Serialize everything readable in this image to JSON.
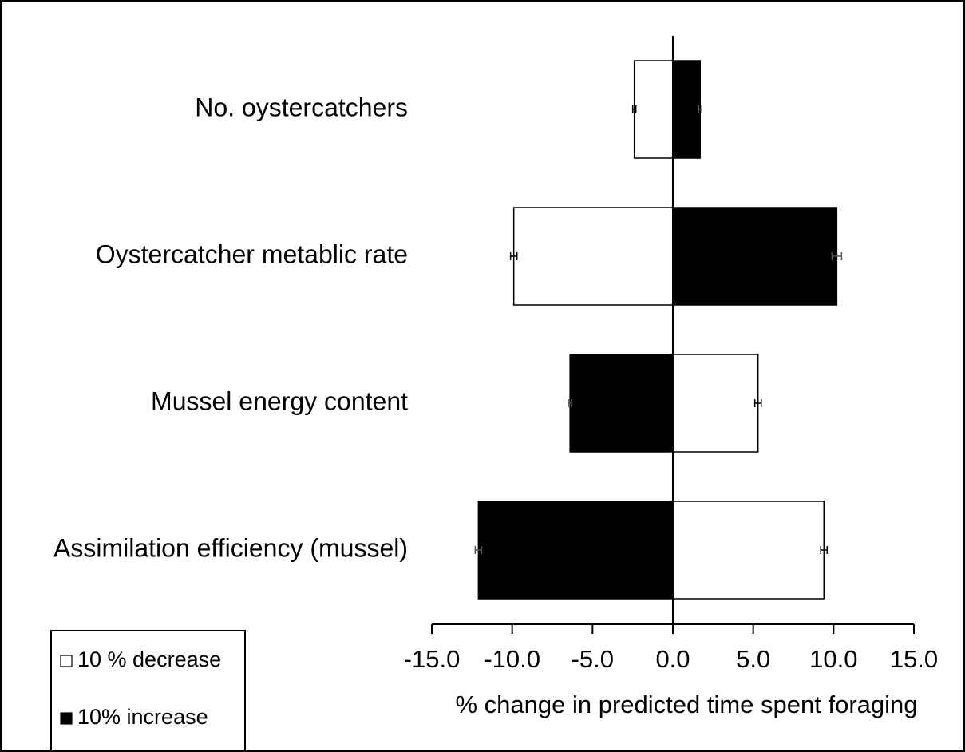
{
  "chart_data": {
    "type": "hbar",
    "categories": [
      "No. oystercatchers",
      "Oystercatcher metablic rate",
      "Mussel energy content",
      "Assimilation efficiency (mussel)"
    ],
    "series": [
      {
        "name": "10 % decrease",
        "color": "#ffffff",
        "values": [
          -2.4,
          -9.9,
          5.3,
          9.4
        ],
        "errors": [
          0.1,
          0.2,
          0.2,
          0.2
        ]
      },
      {
        "name": "10% increase",
        "color": "#000000",
        "values": [
          1.7,
          10.2,
          -6.4,
          -12.1
        ],
        "errors": [
          0.1,
          0.3,
          0.1,
          0.2
        ]
      }
    ],
    "xlabel": "% change in predicted time spent foraging",
    "xlim": [
      -15,
      15
    ],
    "xticks": [
      {
        "value": -15,
        "label": "-15.0"
      },
      {
        "value": -10,
        "label": "-10.0"
      },
      {
        "value": -5,
        "label": "-5.0"
      },
      {
        "value": 0,
        "label": "0.0"
      },
      {
        "value": 5,
        "label": "5.0"
      },
      {
        "value": 10,
        "label": "10.0"
      },
      {
        "value": 15,
        "label": "15.0"
      }
    ],
    "legend": "bottom-left"
  }
}
